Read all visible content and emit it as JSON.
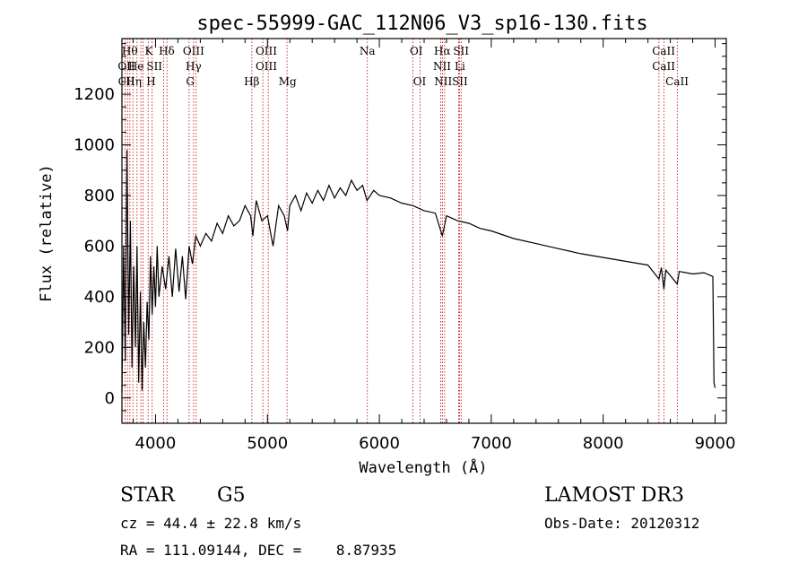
{
  "chart_data": {
    "type": "line",
    "title": "spec-55999-GAC_112N06_V3_sp16-130.fits",
    "xlabel": "Wavelength (Å)",
    "ylabel": "Flux (relative)",
    "xlim": [
      3700,
      9100
    ],
    "ylim": [
      -100,
      1420
    ],
    "xticks": [
      4000,
      5000,
      6000,
      7000,
      8000,
      9000
    ],
    "yticks": [
      0,
      200,
      400,
      600,
      800,
      1000,
      1200
    ],
    "series": [
      {
        "name": "spectrum",
        "points": [
          [
            3700,
            20
          ],
          [
            3715,
            600
          ],
          [
            3730,
            150
          ],
          [
            3745,
            980
          ],
          [
            3760,
            250
          ],
          [
            3775,
            700
          ],
          [
            3790,
            120
          ],
          [
            3805,
            520
          ],
          [
            3820,
            200
          ],
          [
            3835,
            600
          ],
          [
            3850,
            60
          ],
          [
            3865,
            420
          ],
          [
            3880,
            30
          ],
          [
            3895,
            300
          ],
          [
            3910,
            120
          ],
          [
            3925,
            380
          ],
          [
            3940,
            230
          ],
          [
            3955,
            560
          ],
          [
            3970,
            330
          ],
          [
            3985,
            520
          ],
          [
            4000,
            360
          ],
          [
            4015,
            600
          ],
          [
            4030,
            400
          ],
          [
            4060,
            520
          ],
          [
            4090,
            430
          ],
          [
            4120,
            560
          ],
          [
            4150,
            400
          ],
          [
            4180,
            590
          ],
          [
            4210,
            420
          ],
          [
            4240,
            560
          ],
          [
            4270,
            390
          ],
          [
            4300,
            600
          ],
          [
            4330,
            530
          ],
          [
            4360,
            640
          ],
          [
            4400,
            600
          ],
          [
            4450,
            650
          ],
          [
            4500,
            620
          ],
          [
            4550,
            690
          ],
          [
            4600,
            650
          ],
          [
            4650,
            720
          ],
          [
            4700,
            680
          ],
          [
            4750,
            700
          ],
          [
            4800,
            760
          ],
          [
            4850,
            720
          ],
          [
            4870,
            640
          ],
          [
            4900,
            780
          ],
          [
            4950,
            700
          ],
          [
            5000,
            720
          ],
          [
            5050,
            600
          ],
          [
            5100,
            760
          ],
          [
            5150,
            720
          ],
          [
            5180,
            660
          ],
          [
            5200,
            760
          ],
          [
            5250,
            800
          ],
          [
            5300,
            740
          ],
          [
            5350,
            810
          ],
          [
            5400,
            770
          ],
          [
            5450,
            820
          ],
          [
            5500,
            780
          ],
          [
            5550,
            840
          ],
          [
            5600,
            790
          ],
          [
            5650,
            830
          ],
          [
            5700,
            800
          ],
          [
            5750,
            860
          ],
          [
            5800,
            820
          ],
          [
            5850,
            840
          ],
          [
            5890,
            780
          ],
          [
            5950,
            820
          ],
          [
            6000,
            800
          ],
          [
            6100,
            790
          ],
          [
            6200,
            770
          ],
          [
            6300,
            760
          ],
          [
            6400,
            740
          ],
          [
            6500,
            730
          ],
          [
            6563,
            640
          ],
          [
            6600,
            720
          ],
          [
            6700,
            700
          ],
          [
            6800,
            690
          ],
          [
            6900,
            670
          ],
          [
            7000,
            660
          ],
          [
            7200,
            630
          ],
          [
            7400,
            610
          ],
          [
            7600,
            590
          ],
          [
            7800,
            570
          ],
          [
            8000,
            555
          ],
          [
            8200,
            540
          ],
          [
            8400,
            525
          ],
          [
            8498,
            470
          ],
          [
            8520,
            515
          ],
          [
            8542,
            430
          ],
          [
            8560,
            505
          ],
          [
            8662,
            450
          ],
          [
            8680,
            500
          ],
          [
            8800,
            490
          ],
          [
            8900,
            495
          ],
          [
            8980,
            480
          ],
          [
            8990,
            60
          ],
          [
            9000,
            40
          ]
        ]
      }
    ],
    "line_markers": {
      "wavelengths": [
        3727,
        3750,
        3771,
        3798,
        3835,
        3869,
        3889,
        3934,
        3970,
        4072,
        4102,
        4300,
        4340,
        4363,
        4861,
        4959,
        5007,
        5175,
        5893,
        6300,
        6364,
        6548,
        6563,
        6583,
        6708,
        6717,
        6731,
        8498,
        8542,
        8662
      ],
      "labels_row1": [
        "Hθ",
        "K",
        "Hδ",
        "OIII",
        "OIII",
        "Na",
        "OI",
        "Hα",
        "SII",
        "CaII"
      ],
      "labels_row2": [
        "OII",
        "He",
        "SII",
        "Hγ",
        "OIII",
        "NII",
        "Li",
        "CaII"
      ],
      "labels_row3": [
        "CII",
        "Hη",
        "H",
        "G",
        "Hβ",
        "Mg",
        "OI",
        "NII",
        "SII",
        "CaII"
      ]
    }
  },
  "info": {
    "object_class": "STAR",
    "subclass": "G5",
    "survey": "LAMOST DR3",
    "cz": "cz = 44.4 ± 22.8 km/s",
    "obs_date": "Obs-Date: 20120312",
    "radec": "RA = 111.09144, DEC =    8.87935"
  }
}
